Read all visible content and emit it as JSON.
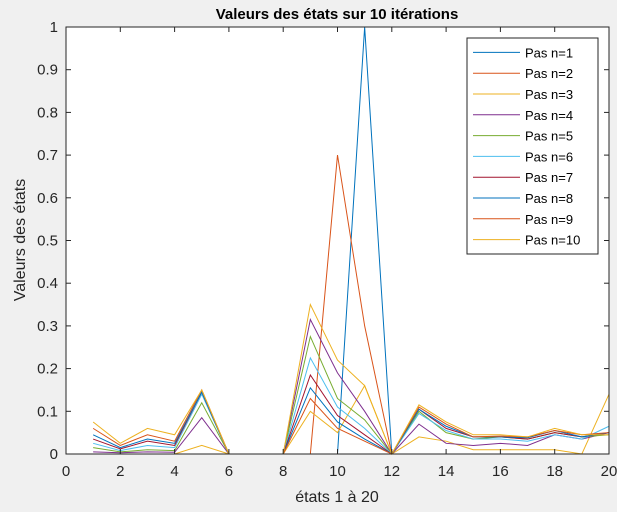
{
  "chart_data": {
    "type": "line",
    "title": "Valeurs des états sur 10 itérations",
    "xlabel": "états 1 à 20",
    "ylabel": "Valeurs des états",
    "xlim": [
      0,
      20
    ],
    "ylim": [
      0,
      1
    ],
    "xticks": [
      0,
      2,
      4,
      6,
      8,
      10,
      12,
      14,
      16,
      18,
      20
    ],
    "xtick_labels": [
      "0",
      "2",
      "4",
      "6",
      "8",
      "10",
      "12",
      "14",
      "16",
      "18",
      "20"
    ],
    "yticks": [
      0,
      0.1,
      0.2,
      0.3,
      0.4,
      0.5,
      0.6,
      0.7,
      0.8,
      0.9,
      1
    ],
    "ytick_labels": [
      "0",
      "0.1",
      "0.2",
      "0.3",
      "0.4",
      "0.5",
      "0.6",
      "0.7",
      "0.8",
      "0.9",
      "1"
    ],
    "grid": false,
    "legend_position": "top-right",
    "x": [
      1,
      2,
      3,
      4,
      5,
      6,
      7,
      8,
      9,
      10,
      11,
      12,
      13,
      14,
      15,
      16,
      17,
      18,
      19,
      20
    ],
    "series": [
      {
        "name": "Pas n=1",
        "color": "#0072BD",
        "values": [
          0,
          0,
          0,
          0,
          0,
          0,
          0,
          0,
          0,
          0,
          1,
          0,
          0,
          0,
          0,
          0,
          0,
          0,
          0,
          0
        ]
      },
      {
        "name": "Pas n=2",
        "color": "#D95319",
        "values": [
          0,
          0,
          0,
          0,
          0,
          0,
          0,
          0,
          0,
          0.7,
          0.3,
          0,
          0,
          0,
          0,
          0,
          0,
          0,
          0,
          0
        ]
      },
      {
        "name": "Pas n=3",
        "color": "#EDB120",
        "values": [
          0,
          0,
          0,
          0,
          0.02,
          0,
          0,
          0,
          0.1,
          0.05,
          0.16,
          0,
          0.04,
          0.03,
          0.01,
          0.01,
          0.01,
          0.01,
          0,
          0.14
        ]
      },
      {
        "name": "Pas n=4",
        "color": "#7E2F8E",
        "values": [
          0.005,
          0.003,
          0.005,
          0.004,
          0.085,
          0,
          0,
          0,
          0.315,
          0.19,
          0.1,
          0,
          0.07,
          0.025,
          0.02,
          0.025,
          0.02,
          0.045,
          0.035,
          0.05
        ]
      },
      {
        "name": "Pas n=5",
        "color": "#77AC30",
        "values": [
          0.015,
          0.005,
          0.01,
          0.008,
          0.12,
          0,
          0,
          0,
          0.275,
          0.13,
          0.08,
          0,
          0.1,
          0.05,
          0.035,
          0.04,
          0.035,
          0.05,
          0.04,
          0.045
        ]
      },
      {
        "name": "Pas n=6",
        "color": "#4DBEEE",
        "values": [
          0.025,
          0.008,
          0.02,
          0.015,
          0.14,
          0,
          0,
          0,
          0.225,
          0.11,
          0.06,
          0,
          0.095,
          0.055,
          0.035,
          0.035,
          0.03,
          0.045,
          0.035,
          0.065
        ]
      },
      {
        "name": "Pas n=7",
        "color": "#A2142F",
        "values": [
          0.035,
          0.012,
          0.03,
          0.02,
          0.145,
          0,
          0,
          0,
          0.185,
          0.09,
          0.045,
          0,
          0.105,
          0.06,
          0.04,
          0.04,
          0.035,
          0.05,
          0.04,
          0.05
        ]
      },
      {
        "name": "Pas n=8",
        "color": "#0072BD",
        "values": [
          0.045,
          0.015,
          0.035,
          0.025,
          0.145,
          0,
          0,
          0,
          0.155,
          0.075,
          0.035,
          0,
          0.105,
          0.065,
          0.04,
          0.04,
          0.038,
          0.055,
          0.04,
          0.05
        ]
      },
      {
        "name": "Pas n=9",
        "color": "#D95319",
        "values": [
          0.06,
          0.02,
          0.045,
          0.03,
          0.15,
          0,
          0,
          0,
          0.13,
          0.06,
          0.03,
          0,
          0.11,
          0.07,
          0.04,
          0.042,
          0.04,
          0.055,
          0.045,
          0.05
        ]
      },
      {
        "name": "Pas n=10",
        "color": "#EDB120",
        "values": [
          0.075,
          0.025,
          0.06,
          0.045,
          0.15,
          0,
          0,
          0,
          0.35,
          0.22,
          0.16,
          0,
          0.115,
          0.075,
          0.045,
          0.045,
          0.04,
          0.06,
          0.045,
          0.045
        ]
      }
    ]
  }
}
